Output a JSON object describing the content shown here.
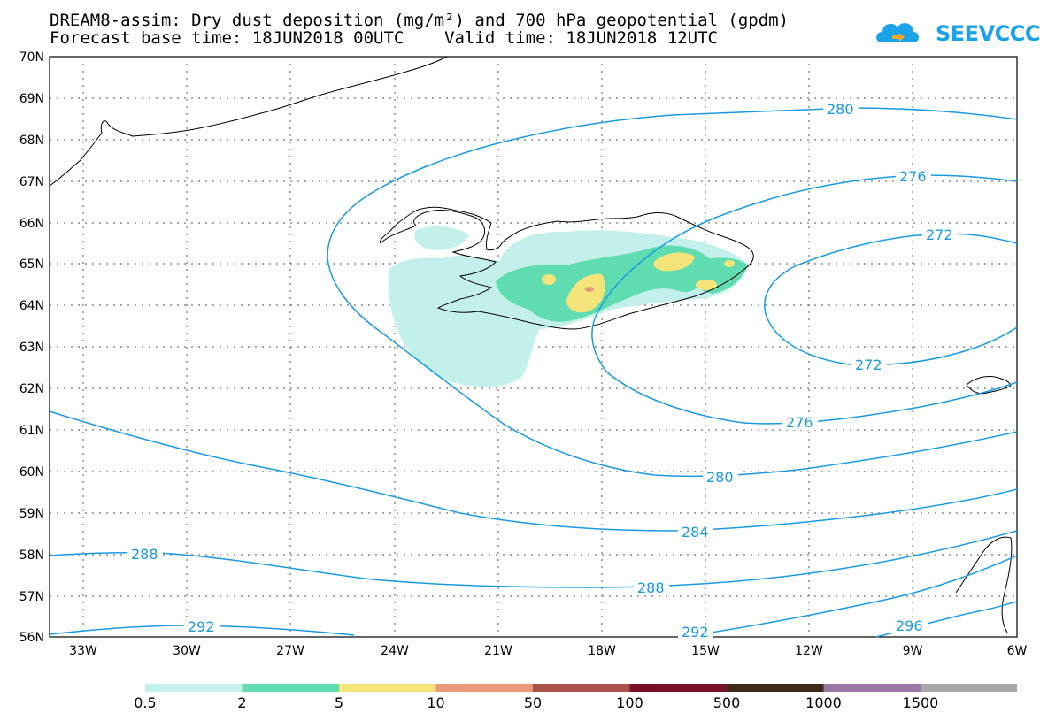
{
  "header": {
    "title_line1": "DREAM8-assim: Dry dust deposition (mg/m²) and 700 hPa geopotential (gpdm)",
    "title_line2": "Forecast base time: 18JUN2018 00UTC    Valid time: 18JUN2018 12UTC",
    "logo_text": "SEEVCCC",
    "logo_icon": "cloud-icon"
  },
  "map": {
    "lat_labels": [
      "70N",
      "69N",
      "68N",
      "67N",
      "66N",
      "65N",
      "64N",
      "63N",
      "62N",
      "61N",
      "60N",
      "59N",
      "58N",
      "57N",
      "56N"
    ],
    "lon_labels": [
      "33W",
      "30W",
      "27W",
      "24W",
      "21W",
      "18W",
      "15W",
      "12W",
      "9W",
      "6W"
    ],
    "contour_color": "#1a9be0",
    "contour_labels": [
      "280",
      "276",
      "272",
      "272",
      "276",
      "280",
      "284",
      "288",
      "288",
      "292",
      "292",
      "296"
    ]
  },
  "legend": {
    "colors": [
      "#c4f0ec",
      "#5fdcb0",
      "#f5e47a",
      "#e89a78",
      "#a8524a",
      "#7a1028",
      "#3e2a1a",
      "#9a76a8",
      "#a8a8a8"
    ],
    "labels": [
      "0.5",
      "2",
      "5",
      "10",
      "50",
      "100",
      "500",
      "1000",
      "1500"
    ]
  }
}
